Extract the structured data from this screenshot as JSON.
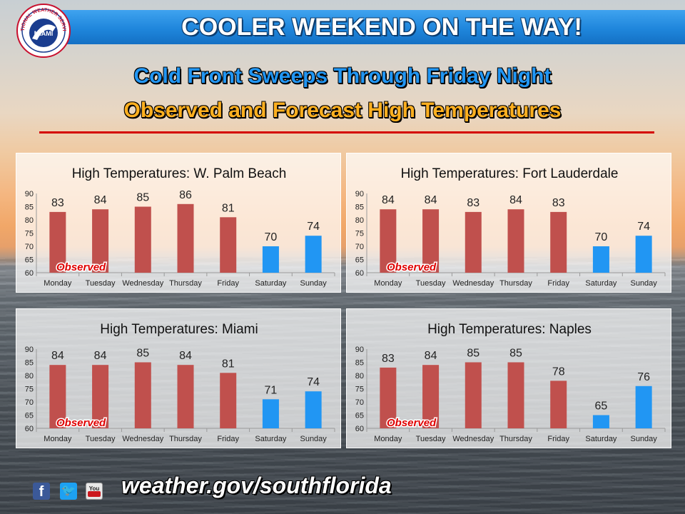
{
  "header": {
    "title": "COOLER WEEKEND ON THE WAY!",
    "logo_top_text": "NATIONAL WEATHER SERVICE",
    "logo_center_text": "MIAMI"
  },
  "subtitle1": "Cold Front Sweeps Through Friday Night",
  "subtitle2": "Observed and Forecast High Temperatures",
  "footer": {
    "url": "weather.gov/southflorida",
    "social": [
      "facebook-icon",
      "twitter-icon",
      "youtube-icon"
    ],
    "youtube_label": "You"
  },
  "colors": {
    "observed_bar": "#c0504d",
    "forecast_bar": "#2196f3",
    "observed_label": "#e00000",
    "banner": "#1f86dc"
  },
  "chart_data": [
    {
      "type": "bar",
      "title": "High Temperatures:  W. Palm Beach",
      "categories": [
        "Monday",
        "Tuesday",
        "Wednesday",
        "Thursday",
        "Friday",
        "Saturday",
        "Sunday"
      ],
      "values": [
        83,
        84,
        85,
        86,
        81,
        70,
        74
      ],
      "kind": [
        "observed",
        "observed",
        "observed",
        "observed",
        "observed",
        "forecast",
        "forecast"
      ],
      "ylim": [
        60,
        90
      ],
      "yticks": [
        60,
        65,
        70,
        75,
        80,
        85,
        90
      ],
      "annotation": "Observed"
    },
    {
      "type": "bar",
      "title": "High Temperatures:   Fort Lauderdale",
      "categories": [
        "Monday",
        "Tuesday",
        "Wednesday",
        "Thursday",
        "Friday",
        "Saturday",
        "Sunday"
      ],
      "values": [
        84,
        84,
        83,
        84,
        83,
        70,
        74
      ],
      "kind": [
        "observed",
        "observed",
        "observed",
        "observed",
        "observed",
        "forecast",
        "forecast"
      ],
      "ylim": [
        60,
        90
      ],
      "yticks": [
        60,
        65,
        70,
        75,
        80,
        85,
        90
      ],
      "annotation": "Observed"
    },
    {
      "type": "bar",
      "title": "High Temperatures:  Miami",
      "categories": [
        "Monday",
        "Tuesday",
        "Wednesday",
        "Thursday",
        "Friday",
        "Saturday",
        "Sunday"
      ],
      "values": [
        84,
        84,
        85,
        84,
        81,
        71,
        74
      ],
      "kind": [
        "observed",
        "observed",
        "observed",
        "observed",
        "observed",
        "forecast",
        "forecast"
      ],
      "ylim": [
        60,
        90
      ],
      "yticks": [
        60,
        65,
        70,
        75,
        80,
        85,
        90
      ],
      "annotation": "Observed"
    },
    {
      "type": "bar",
      "title": "High Temperatures:  Naples",
      "categories": [
        "Monday",
        "Tuesday",
        "Wednesday",
        "Thursday",
        "Friday",
        "Saturday",
        "Sunday"
      ],
      "values": [
        83,
        84,
        85,
        85,
        78,
        65,
        76
      ],
      "kind": [
        "observed",
        "observed",
        "observed",
        "observed",
        "observed",
        "forecast",
        "forecast"
      ],
      "ylim": [
        60,
        90
      ],
      "yticks": [
        60,
        65,
        70,
        75,
        80,
        85,
        90
      ],
      "annotation": "Observed"
    }
  ]
}
